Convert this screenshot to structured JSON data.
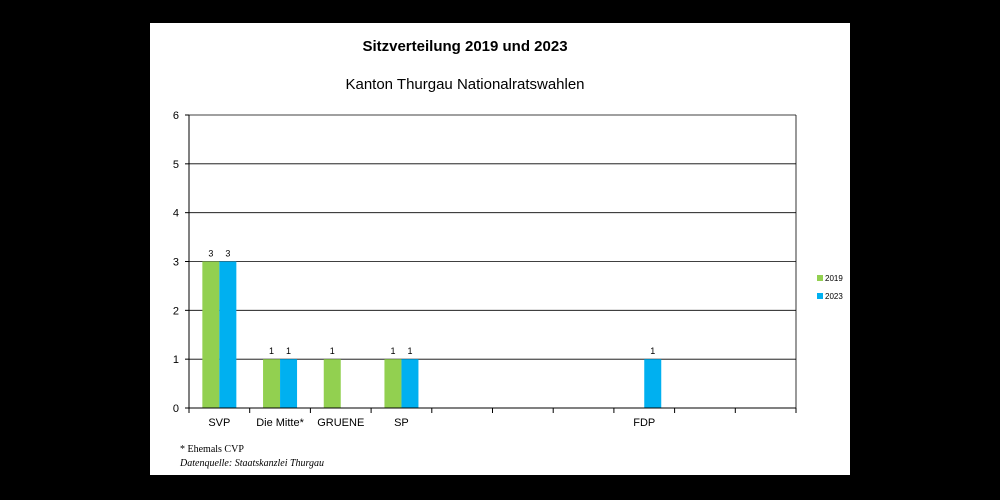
{
  "title": "Sitzverteilung 2019 und 2023",
  "subtitle": "Kanton Thurgau Nationalratswahlen",
  "footnote": "* Ehemals CVP",
  "source": "Datenquelle: Staatskanzlei Thurgau",
  "colors": {
    "series_2019": "#92d050",
    "series_2023": "#00b0f0"
  },
  "chart_data": {
    "type": "bar",
    "categories": [
      "SVP",
      "Die Mitte*",
      "GRUENE",
      "SP",
      "",
      "",
      "",
      "FDP",
      "",
      ""
    ],
    "series": [
      {
        "name": "2019",
        "values": [
          3,
          1,
          1,
          1,
          null,
          null,
          null,
          null,
          null,
          null
        ],
        "color": "#92d050"
      },
      {
        "name": "2023",
        "values": [
          3,
          1,
          null,
          1,
          null,
          null,
          null,
          1,
          null,
          null
        ],
        "color": "#00b0f0"
      }
    ],
    "ylim": [
      0,
      6
    ],
    "yticks": [
      0,
      1,
      2,
      3,
      4,
      5,
      6
    ],
    "grid": true,
    "legend": "right",
    "data_labels": true
  }
}
